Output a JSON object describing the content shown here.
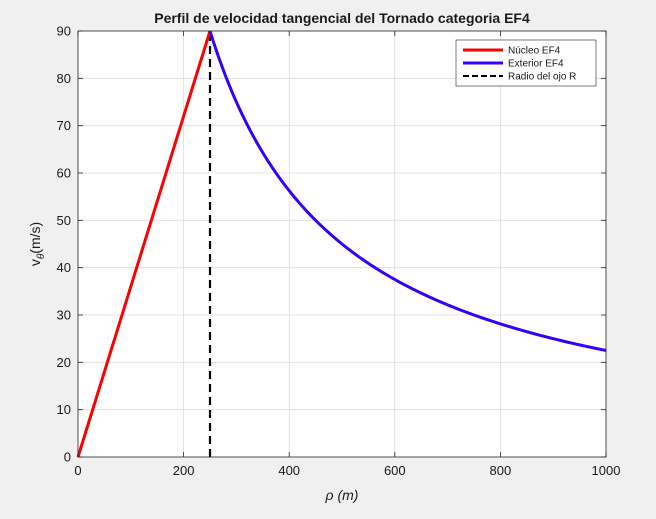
{
  "chart_data": {
    "type": "line",
    "title": "Perfil de velocidad tangencial del Tornado categoria EF4",
    "xlabel": "ρ  (m)",
    "ylabel": "v",
    "ylabel_sub": "θ",
    "ylabel_suffix": "(m/s)",
    "xlim": [
      0,
      1000
    ],
    "ylim": [
      0,
      90
    ],
    "xticks": [
      0,
      200,
      400,
      600,
      800,
      1000
    ],
    "yticks": [
      0,
      10,
      20,
      30,
      40,
      50,
      60,
      70,
      80,
      90
    ],
    "grid": true,
    "legend_position": "top-right",
    "eye_radius": 250,
    "max_velocity": 90,
    "series": [
      {
        "name": "Núcleo EF4",
        "color": "#ff0000",
        "style": "solid",
        "x": [
          0,
          250
        ],
        "y": [
          0,
          90
        ]
      },
      {
        "name": "Exterior EF4",
        "color": "#3300ff",
        "style": "solid",
        "x": [
          250,
          300,
          350,
          400,
          450,
          500,
          550,
          600,
          650,
          700,
          750,
          800,
          850,
          900,
          950,
          1000
        ],
        "y": [
          90,
          75,
          64.3,
          56.25,
          50,
          45,
          40.9,
          37.5,
          34.6,
          32.1,
          30,
          28.1,
          26.5,
          25,
          23.7,
          22.5
        ]
      },
      {
        "name": "Radio del ojo R",
        "color": "#000000",
        "style": "dashed",
        "x": [
          250,
          250
        ],
        "y": [
          0,
          90
        ]
      }
    ]
  }
}
